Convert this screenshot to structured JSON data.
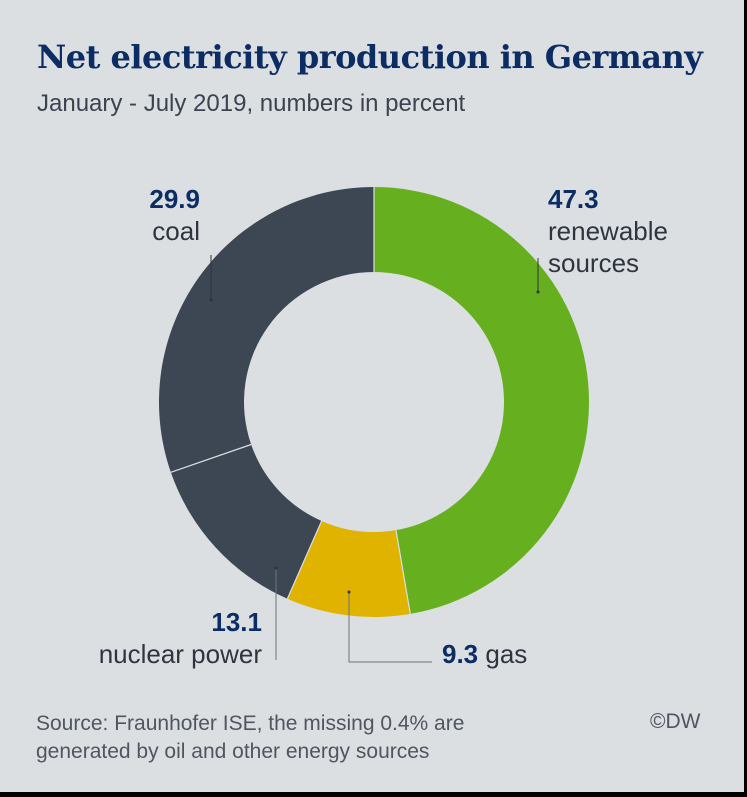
{
  "chart_data": {
    "type": "pie",
    "title": "Net electricity production in Germany",
    "subtitle": "January - July 2019, numbers in percent",
    "donut": true,
    "slices": [
      {
        "label": "renewable sources",
        "value": 47.3,
        "color": "#66b01f"
      },
      {
        "label": "gas",
        "value": 9.3,
        "color": "#dfb300"
      },
      {
        "label": "nuclear power",
        "value": 13.1,
        "color": "#3c4753"
      },
      {
        "label": "coal",
        "value": 29.9,
        "color": "#3c4753"
      }
    ],
    "labels": {
      "renewable_value": "47.3",
      "renewable_line1": "renewable",
      "renewable_line2": "sources",
      "gas_value": "9.3",
      "gas_label": "gas",
      "nuclear_value": "13.1",
      "nuclear_label": "nuclear power",
      "coal_value": "29.9",
      "coal_label": "coal"
    },
    "source_line1": "Source: Fraunhofer ISE, the missing 0.4% are",
    "source_line2": "generated by oil and other energy sources",
    "copyright": "©DW"
  }
}
